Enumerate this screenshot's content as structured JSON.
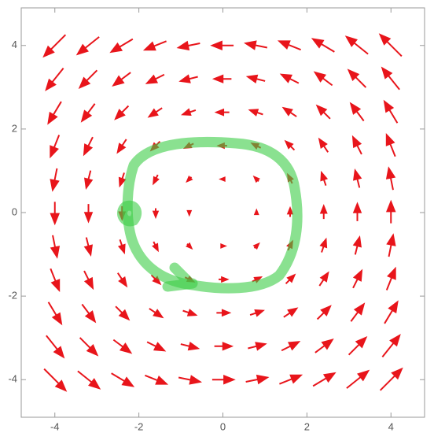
{
  "chart_data": {
    "type": "vector",
    "x": [
      -4,
      -3.2,
      -2.4,
      -1.6,
      -0.8,
      0,
      0.8,
      1.6,
      2.4,
      3.2,
      4
    ],
    "y": [
      -4,
      -3.2,
      -2.4,
      -1.6,
      -0.8,
      0,
      0.8,
      1.6,
      2.4,
      3.2,
      4
    ],
    "u": [
      [
        4,
        4,
        4,
        4,
        4,
        4,
        4,
        4,
        4,
        4,
        4
      ],
      [
        3.2,
        3.2,
        3.2,
        3.2,
        3.2,
        3.2,
        3.2,
        3.2,
        3.2,
        3.2,
        3.2
      ],
      [
        2.4,
        2.4,
        2.4,
        2.4,
        2.4,
        2.4,
        2.4,
        2.4,
        2.4,
        2.4,
        2.4
      ],
      [
        1.6,
        1.6,
        1.6,
        1.6,
        1.6,
        1.6,
        1.6,
        1.6,
        1.6,
        1.6,
        1.6
      ],
      [
        0.8,
        0.8,
        0.8,
        0.8,
        0.8,
        0.8,
        0.8,
        0.8,
        0.8,
        0.8,
        0.8
      ],
      [
        0,
        0,
        0,
        0,
        0,
        0,
        0,
        0,
        0,
        0,
        0
      ],
      [
        -0.8,
        -0.8,
        -0.8,
        -0.8,
        -0.8,
        -0.8,
        -0.8,
        -0.8,
        -0.8,
        -0.8,
        -0.8
      ],
      [
        -1.6,
        -1.6,
        -1.6,
        -1.6,
        -1.6,
        -1.6,
        -1.6,
        -1.6,
        -1.6,
        -1.6,
        -1.6
      ],
      [
        -2.4,
        -2.4,
        -2.4,
        -2.4,
        -2.4,
        -2.4,
        -2.4,
        -2.4,
        -2.4,
        -2.4,
        -2.4
      ],
      [
        -3.2,
        -3.2,
        -3.2,
        -3.2,
        -3.2,
        -3.2,
        -3.2,
        -3.2,
        -3.2,
        -3.2,
        -3.2
      ],
      [
        -4,
        -4,
        -4,
        -4,
        -4,
        -4,
        -4,
        -4,
        -4,
        -4,
        -4
      ]
    ],
    "v": [
      [
        -4,
        -3.2,
        -2.4,
        -1.6,
        -0.8,
        0,
        0.8,
        1.6,
        2.4,
        3.2,
        4
      ],
      [
        -4,
        -3.2,
        -2.4,
        -1.6,
        -0.8,
        0,
        0.8,
        1.6,
        2.4,
        3.2,
        4
      ],
      [
        -4,
        -3.2,
        -2.4,
        -1.6,
        -0.8,
        0,
        0.8,
        1.6,
        2.4,
        3.2,
        4
      ],
      [
        -4,
        -3.2,
        -2.4,
        -1.6,
        -0.8,
        0,
        0.8,
        1.6,
        2.4,
        3.2,
        4
      ],
      [
        -4,
        -3.2,
        -2.4,
        -1.6,
        -0.8,
        0,
        0.8,
        1.6,
        2.4,
        3.2,
        4
      ],
      [
        -4,
        -3.2,
        -2.4,
        -1.6,
        -0.8,
        0,
        0.8,
        1.6,
        2.4,
        3.2,
        4
      ],
      [
        -4,
        -3.2,
        -2.4,
        -1.6,
        -0.8,
        0,
        0.8,
        1.6,
        2.4,
        3.2,
        4
      ],
      [
        -4,
        -3.2,
        -2.4,
        -1.6,
        -0.8,
        0,
        0.8,
        1.6,
        2.4,
        3.2,
        4
      ],
      [
        -4,
        -3.2,
        -2.4,
        -1.6,
        -0.8,
        0,
        0.8,
        1.6,
        2.4,
        3.2,
        4
      ],
      [
        -4,
        -3.2,
        -2.4,
        -1.6,
        -0.8,
        0,
        0.8,
        1.6,
        2.4,
        3.2,
        4
      ],
      [
        -4,
        -3.2,
        -2.4,
        -1.6,
        -0.8,
        0,
        0.8,
        1.6,
        2.4,
        3.2,
        4
      ]
    ],
    "color": "#e8151b",
    "xlim": [
      -4.8,
      4.8
    ],
    "ylim": [
      -4.9,
      4.9
    ],
    "xticks": [
      -4,
      -2,
      0,
      2,
      4
    ],
    "yticks": [
      -4,
      -2,
      0,
      2,
      4
    ]
  }
}
